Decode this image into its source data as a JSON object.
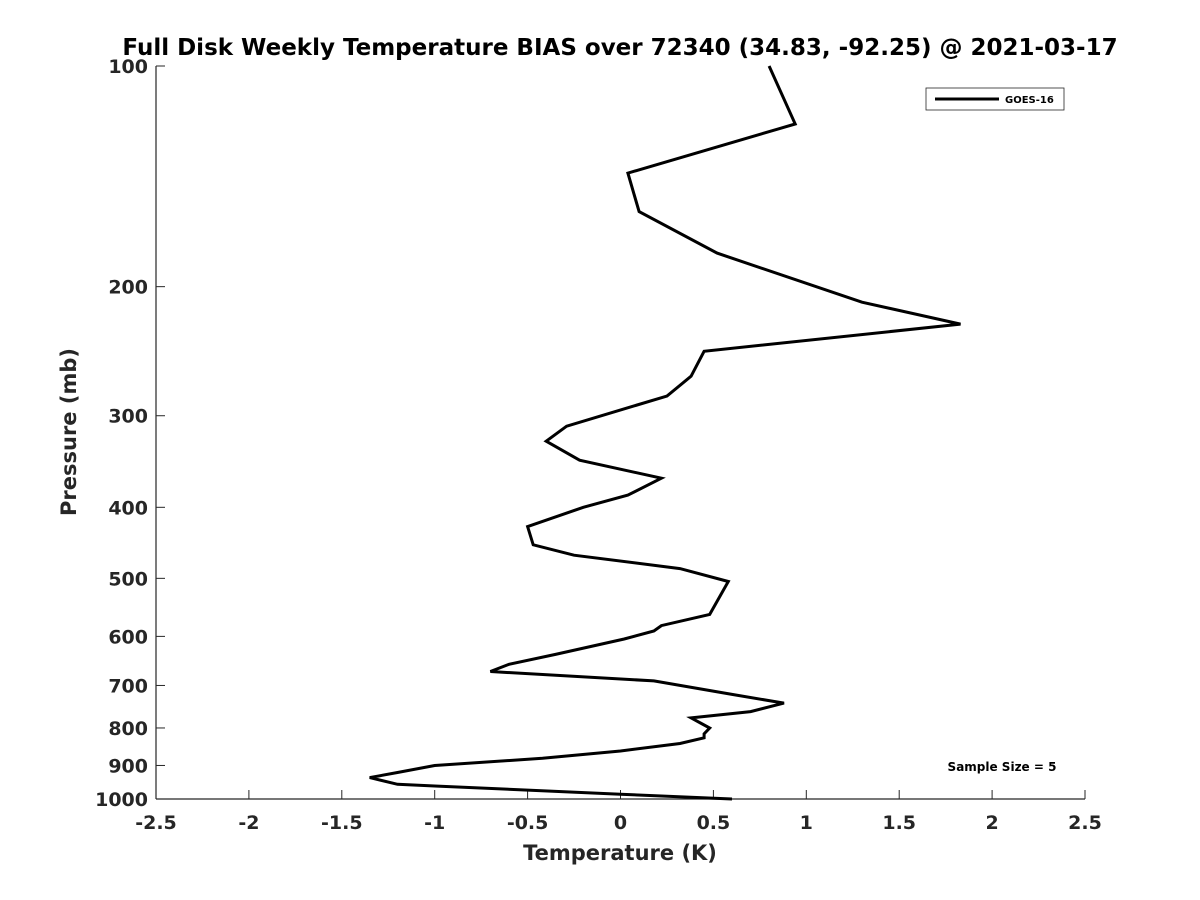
{
  "chart_data": {
    "type": "line",
    "title": "Full Disk Weekly Temperature BIAS over 72340 (34.83, -92.25) @ 2021-03-17",
    "xlabel": "Temperature (K)",
    "ylabel": "Pressure (mb)",
    "xlim": [
      -2.5,
      2.5
    ],
    "ylim": [
      100,
      1000
    ],
    "yscale": "log",
    "y_reversed": true,
    "grid": false,
    "legend_position": "top-right",
    "x_ticks": [
      -2.5,
      -2,
      -1.5,
      -1,
      -0.5,
      0,
      0.5,
      1,
      1.5,
      2,
      2.5
    ],
    "x_tick_labels": [
      "-2.5",
      "-2",
      "-1.5",
      "-1",
      "-0.5",
      "0",
      "0.5",
      "1",
      "1.5",
      "2",
      "2.5"
    ],
    "y_ticks": [
      100,
      200,
      300,
      400,
      500,
      600,
      700,
      800,
      900,
      1000
    ],
    "y_tick_labels": [
      "100",
      "200",
      "300",
      "400",
      "500",
      "600",
      "700",
      "800",
      "900",
      "1000"
    ],
    "series": [
      {
        "name": "GOES-16",
        "color": "#000000",
        "points": [
          {
            "x": 0.6,
            "p": 1000
          },
          {
            "x": 0.0,
            "p": 985
          },
          {
            "x": -1.0,
            "p": 960
          },
          {
            "x": -1.2,
            "p": 955
          },
          {
            "x": -1.35,
            "p": 935
          },
          {
            "x": -1.2,
            "p": 920
          },
          {
            "x": -1.0,
            "p": 900
          },
          {
            "x": -0.42,
            "p": 880
          },
          {
            "x": 0.0,
            "p": 860
          },
          {
            "x": 0.32,
            "p": 840
          },
          {
            "x": 0.45,
            "p": 825
          },
          {
            "x": 0.45,
            "p": 815
          },
          {
            "x": 0.48,
            "p": 800
          },
          {
            "x": 0.44,
            "p": 790
          },
          {
            "x": 0.38,
            "p": 775
          },
          {
            "x": 0.7,
            "p": 760
          },
          {
            "x": 0.88,
            "p": 740
          },
          {
            "x": 0.6,
            "p": 720
          },
          {
            "x": 0.18,
            "p": 690
          },
          {
            "x": -0.7,
            "p": 670
          },
          {
            "x": -0.6,
            "p": 655
          },
          {
            "x": -0.35,
            "p": 635
          },
          {
            "x": 0.02,
            "p": 605
          },
          {
            "x": 0.18,
            "p": 590
          },
          {
            "x": 0.22,
            "p": 580
          },
          {
            "x": 0.48,
            "p": 560
          },
          {
            "x": 0.58,
            "p": 505
          },
          {
            "x": 0.32,
            "p": 485
          },
          {
            "x": -0.25,
            "p": 465
          },
          {
            "x": -0.47,
            "p": 450
          },
          {
            "x": -0.5,
            "p": 425
          },
          {
            "x": -0.2,
            "p": 400
          },
          {
            "x": 0.04,
            "p": 385
          },
          {
            "x": 0.22,
            "p": 365
          },
          {
            "x": -0.22,
            "p": 345
          },
          {
            "x": -0.4,
            "p": 325
          },
          {
            "x": -0.29,
            "p": 310
          },
          {
            "x": 0.25,
            "p": 282
          },
          {
            "x": 0.38,
            "p": 265
          },
          {
            "x": 0.45,
            "p": 245
          },
          {
            "x": 1.83,
            "p": 225
          },
          {
            "x": 1.3,
            "p": 210
          },
          {
            "x": 0.52,
            "p": 180
          },
          {
            "x": 0.1,
            "p": 158
          },
          {
            "x": 0.04,
            "p": 140
          },
          {
            "x": 0.94,
            "p": 120
          },
          {
            "x": 0.8,
            "p": 100
          }
        ]
      }
    ],
    "annotations": [
      "Sample Size = 5"
    ]
  }
}
